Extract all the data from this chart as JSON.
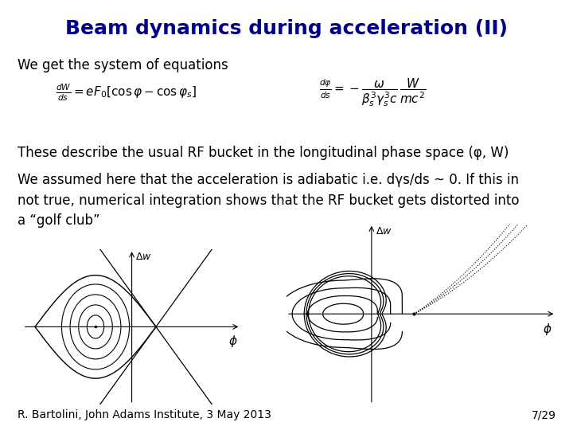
{
  "title": "Beam dynamics during acceleration (II)",
  "title_color": "#00008B",
  "title_fontsize": 18,
  "bg_color": "#FFFFFF",
  "text1": "We get the system of equations",
  "text1_fontsize": 12,
  "text2": "These describe the usual RF bucket in the longitudinal phase space (φ, W)",
  "text2_fontsize": 12,
  "text3_line1": "We assumed here that the acceleration is adiabatic i.e. dγ",
  "text3": "We assumed here that the acceleration is adiabatic i.e. dγs/ds ~ 0. If this in\nnot true, numerical integration shows that the RF bucket gets distorted into\na “golf club”",
  "text3_fontsize": 12,
  "footer_left": "R. Bartolini, John Adams Institute, 3 May 2013",
  "footer_right": "7/29",
  "footer_fontsize": 10
}
